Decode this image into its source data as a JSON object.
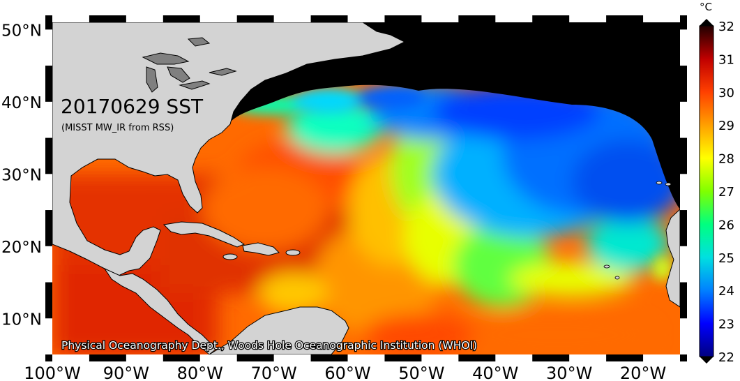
{
  "map": {
    "title": "20170629 SST",
    "subtitle": "(MISST MW_IR from RSS)",
    "credit": "Physical Oceanography Dept., Woods Hole Oceanographic Institution (WHOI)",
    "lat_labels": [
      "50°N",
      "40°N",
      "30°N",
      "20°N",
      "10°N"
    ],
    "lat_values": [
      50,
      40,
      30,
      20,
      10
    ],
    "lon_labels": [
      "100°W",
      "90°W",
      "80°W",
      "70°W",
      "60°W",
      "50°W",
      "40°W",
      "30°W",
      "20°W"
    ],
    "lon_values": [
      -100,
      -90,
      -80,
      -70,
      -60,
      -50,
      -40,
      -30,
      -20
    ],
    "lat_range": [
      5,
      51
    ],
    "lon_range": [
      -100,
      -15
    ]
  },
  "colorbar": {
    "unit": "°C",
    "labels": [
      "32",
      "31",
      "30",
      "29",
      "28",
      "27",
      "26",
      "25",
      "24",
      "23",
      "22"
    ],
    "values": [
      32,
      31,
      30,
      29,
      28,
      27,
      26,
      25,
      24,
      23,
      22
    ],
    "colors": [
      "#000080",
      "#0000ff",
      "#0080ff",
      "#00e0e0",
      "#00ff80",
      "#80ff00",
      "#ffff00",
      "#ffa000",
      "#ff4000",
      "#c00000",
      "#200000"
    ]
  },
  "colors": {
    "land": "#d3d3d3",
    "cold_water": "#000000",
    "lake": "#808080"
  }
}
